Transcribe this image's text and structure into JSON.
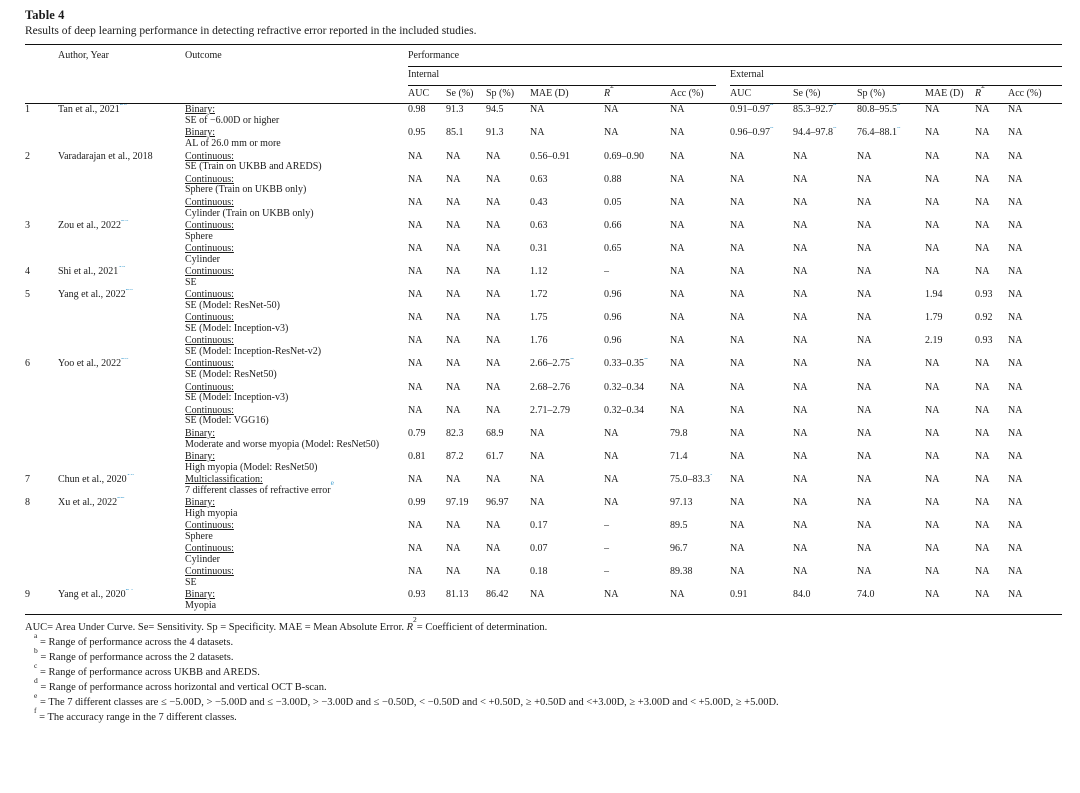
{
  "table": {
    "label": "Table 4",
    "caption": "Results of deep learning performance in detecting refractive error reported in the included studies.",
    "headers": {
      "author": "Author, Year",
      "outcome": "Outcome",
      "performance": "Performance",
      "internal": "Internal",
      "external": "External",
      "metrics": [
        "AUC",
        "Se (%)",
        "Sp (%)",
        "MAE (D)",
        "R²",
        "Acc (%)"
      ]
    },
    "studies": [
      {
        "num": "1",
        "author": "Tan et al., 2021",
        "ref": "20",
        "outcomes": [
          {
            "type": "Binary:",
            "desc": "SE of −6.00D or higher",
            "internal": [
              "0.98",
              "91.3",
              "94.5",
              "NA",
              "NA",
              "NA"
            ],
            "external": [
              "0.91–0.97^a",
              "85.3–92.7^a",
              "80.8–95.5^a",
              "NA",
              "NA",
              "NA"
            ]
          },
          {
            "type": "Binary:",
            "desc": "AL of 26.0 mm or more",
            "internal": [
              "0.95",
              "85.1",
              "91.3",
              "NA",
              "NA",
              "NA"
            ],
            "external": [
              "0.96–0.97^b",
              "94.4–97.8^b",
              "76.4–88.1^b",
              "NA",
              "NA",
              "NA"
            ]
          }
        ]
      },
      {
        "num": "2",
        "author": "Varadarajan et al., 2018",
        "ref": "21",
        "outcomes": [
          {
            "type": "Continuous:",
            "desc": "SE (Train on UKBB and AREDS)",
            "internal": [
              "NA",
              "NA",
              "NA",
              "0.56–0.91^c",
              "0.69–0.90^c",
              "NA"
            ],
            "external": [
              "NA",
              "NA",
              "NA",
              "NA",
              "NA",
              "NA"
            ]
          },
          {
            "type": "Continuous:",
            "desc": "Sphere (Train on UKBB only)",
            "internal": [
              "NA",
              "NA",
              "NA",
              "0.63",
              "0.88",
              "NA"
            ],
            "external": [
              "NA",
              "NA",
              "NA",
              "NA",
              "NA",
              "NA"
            ]
          },
          {
            "type": "Continuous:",
            "desc": "Cylinder (Train on UKBB only)",
            "internal": [
              "NA",
              "NA",
              "NA",
              "0.43",
              "0.05",
              "NA"
            ],
            "external": [
              "NA",
              "NA",
              "NA",
              "NA",
              "NA",
              "NA"
            ]
          }
        ]
      },
      {
        "num": "3",
        "author": "Zou et al., 2022",
        "ref": "26",
        "outcomes": [
          {
            "type": "Continuous:",
            "desc": "Sphere",
            "internal": [
              "NA",
              "NA",
              "NA",
              "0.63",
              "0.66",
              "NA"
            ],
            "external": [
              "NA",
              "NA",
              "NA",
              "NA",
              "NA",
              "NA"
            ]
          },
          {
            "type": "Continuous:",
            "desc": "Cylinder",
            "internal": [
              "NA",
              "NA",
              "NA",
              "0.31",
              "0.65",
              "NA"
            ],
            "external": [
              "NA",
              "NA",
              "NA",
              "NA",
              "NA",
              "NA"
            ]
          }
        ]
      },
      {
        "num": "4",
        "author": "Shi et al., 2021",
        "ref": "19",
        "outcomes": [
          {
            "type": "Continuous:",
            "desc": "SE",
            "internal": [
              "NA",
              "NA",
              "NA",
              "1.12",
              "–",
              "NA"
            ],
            "external": [
              "NA",
              "NA",
              "NA",
              "NA",
              "NA",
              "NA"
            ]
          }
        ]
      },
      {
        "num": "5",
        "author": "Yang et al., 2022",
        "ref": "23",
        "outcomes": [
          {
            "type": "Continuous:",
            "desc": "SE (Model: ResNet-50)",
            "internal": [
              "NA",
              "NA",
              "NA",
              "1.72",
              "0.96",
              "NA"
            ],
            "external": [
              "NA",
              "NA",
              "NA",
              "1.94",
              "0.93",
              "NA"
            ]
          },
          {
            "type": "Continuous:",
            "desc": "SE (Model: Inception-v3)",
            "internal": [
              "NA",
              "NA",
              "NA",
              "1.75",
              "0.96",
              "NA"
            ],
            "external": [
              "NA",
              "NA",
              "NA",
              "1.79",
              "0.92",
              "NA"
            ]
          },
          {
            "type": "Continuous:",
            "desc": "SE (Model: Inception-ResNet-v2)",
            "internal": [
              "NA",
              "NA",
              "NA",
              "1.76",
              "0.96",
              "NA"
            ],
            "external": [
              "NA",
              "NA",
              "NA",
              "2.19",
              "0.93",
              "NA"
            ]
          }
        ]
      },
      {
        "num": "6",
        "author": "Yoo et al., 2022",
        "ref": "25",
        "outcomes": [
          {
            "type": "Continuous:",
            "desc": "SE (Model: ResNet50)",
            "internal": [
              "NA",
              "NA",
              "NA",
              "2.66–2.75^d",
              "0.33–0.35^d",
              "NA"
            ],
            "external": [
              "NA",
              "NA",
              "NA",
              "NA",
              "NA",
              "NA"
            ]
          },
          {
            "type": "Continuous:",
            "desc": "SE (Model: Inception-v3)",
            "internal": [
              "NA",
              "NA",
              "NA",
              "2.68–2.76^d",
              "0.32–0.34^d",
              "NA"
            ],
            "external": [
              "NA",
              "NA",
              "NA",
              "NA",
              "NA",
              "NA"
            ]
          },
          {
            "type": "Continuous:",
            "desc": "SE (Model: VGG16)",
            "internal": [
              "NA",
              "NA",
              "NA",
              "2.71–2.79^d",
              "0.32–0.34^d",
              "NA"
            ],
            "external": [
              "NA",
              "NA",
              "NA",
              "NA",
              "NA",
              "NA"
            ]
          },
          {
            "type": "Binary:",
            "desc": "Moderate and worse myopia (Model: ResNet50)",
            "internal": [
              "0.79",
              "82.3",
              "68.9",
              "NA",
              "NA",
              "79.8"
            ],
            "external": [
              "NA",
              "NA",
              "NA",
              "NA",
              "NA",
              "NA"
            ]
          },
          {
            "type": "Binary:",
            "desc": "High myopia (Model: ResNet50)",
            "internal": [
              "0.81",
              "87.2",
              "61.7",
              "NA",
              "NA",
              "71.4"
            ],
            "external": [
              "NA",
              "NA",
              "NA",
              "NA",
              "NA",
              "NA"
            ]
          }
        ]
      },
      {
        "num": "7",
        "author": "Chun et al., 2020",
        "ref": "18",
        "outcomes": [
          {
            "type": "Multiclassification:",
            "desc": "7 different classes of refractive error^e",
            "internal": [
              "NA",
              "NA",
              "NA",
              "NA",
              "NA",
              "75.0–83.3^f"
            ],
            "external": [
              "NA",
              "NA",
              "NA",
              "NA",
              "NA",
              "NA"
            ]
          }
        ]
      },
      {
        "num": "8",
        "author": "Xu et al., 2022",
        "ref": "22",
        "outcomes": [
          {
            "type": "Binary:",
            "desc": "High myopia",
            "internal": [
              "0.99",
              "97.19",
              "96.97",
              "NA",
              "NA",
              "97.13"
            ],
            "external": [
              "NA",
              "NA",
              "NA",
              "NA",
              "NA",
              "NA"
            ]
          },
          {
            "type": "Continuous:",
            "desc": "Sphere",
            "internal": [
              "NA",
              "NA",
              "NA",
              "0.17",
              "–",
              "89.5"
            ],
            "external": [
              "NA",
              "NA",
              "NA",
              "NA",
              "NA",
              "NA"
            ]
          },
          {
            "type": "Continuous:",
            "desc": "Cylinder",
            "internal": [
              "NA",
              "NA",
              "NA",
              "0.07",
              "–",
              "96.7"
            ],
            "external": [
              "NA",
              "NA",
              "NA",
              "NA",
              "NA",
              "NA"
            ]
          },
          {
            "type": "Continuous:",
            "desc": "SE",
            "internal": [
              "NA",
              "NA",
              "NA",
              "0.18",
              "–",
              "89.38"
            ],
            "external": [
              "NA",
              "NA",
              "NA",
              "NA",
              "NA",
              "NA"
            ]
          }
        ]
      },
      {
        "num": "9",
        "author": "Yang et al., 2020",
        "ref": "24",
        "outcomes": [
          {
            "type": "Binary:",
            "desc": "Myopia",
            "internal": [
              "0.93",
              "81.13",
              "86.42",
              "NA",
              "NA",
              "NA"
            ],
            "external": [
              "0.91",
              "84.0",
              "74.0",
              "NA",
              "NA",
              "NA"
            ]
          }
        ]
      }
    ],
    "footnotes": {
      "abbreviations": "AUC= Area Under Curve. Se= Sensitivity. Sp = Specificity. MAE = Mean Absolute Error. R²= Coefficient of determination.",
      "notes": [
        {
          "mark": "a",
          "text": "= Range of performance across the 4 datasets."
        },
        {
          "mark": "b",
          "text": "= Range of performance across the 2 datasets."
        },
        {
          "mark": "c",
          "text": "= Range of performance across UKBB and AREDS."
        },
        {
          "mark": "d",
          "text": "= Range of performance across horizontal and vertical OCT B-scan."
        },
        {
          "mark": "e",
          "text": "= The 7 different classes are ≤ −5.00D, > −5.00D and ≤ −3.00D, > −3.00D and ≤ −0.50D, < −0.50D and < +0.50D, ≥ +0.50D and <+3.00D, ≥ +3.00D and < +5.00D, ≥ +5.00D."
        },
        {
          "mark": "f",
          "text": "= The accuracy range in the 7 different classes."
        }
      ]
    }
  }
}
